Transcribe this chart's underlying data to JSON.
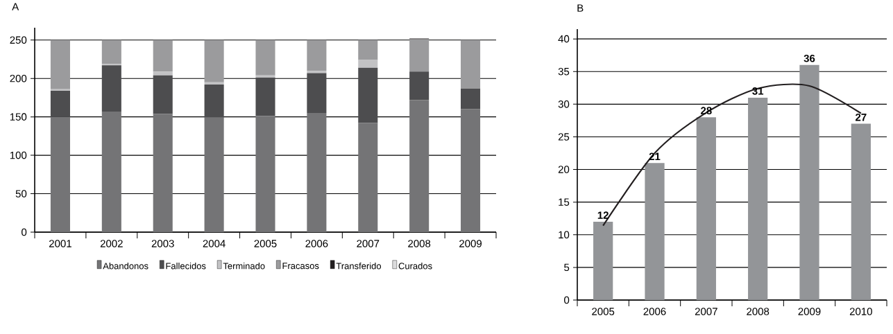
{
  "chart_data": [
    {
      "type": "bar",
      "title": "A",
      "stacked": true,
      "categories": [
        "2001",
        "2002",
        "2003",
        "2004",
        "2005",
        "2006",
        "2007",
        "2008",
        "2009"
      ],
      "series": [
        {
          "name": "Abandonos",
          "color": "#747476",
          "values": [
            150,
            157,
            154,
            149,
            151,
            155,
            142,
            172,
            160
          ]
        },
        {
          "name": "Fallecidos",
          "color": "#4d4d4f",
          "values": [
            34,
            60,
            50,
            43,
            50,
            52,
            72,
            37,
            27
          ]
        },
        {
          "name": "Terminado",
          "color": "#c2c2c4",
          "values": [
            2,
            2,
            5,
            3,
            3,
            3,
            10,
            0,
            0
          ]
        },
        {
          "name": "Fracasos",
          "color": "#9b9b9d",
          "values": [
            64,
            31,
            41,
            55,
            46,
            40,
            26,
            42,
            63
          ]
        },
        {
          "name": "Transferido",
          "color": "#231f20",
          "values": [
            0,
            0,
            0,
            0,
            0,
            0,
            0,
            1,
            0
          ]
        },
        {
          "name": "Curados",
          "color": "#dcdcdd",
          "values": [
            0,
            0,
            0,
            0,
            0,
            0,
            0,
            0,
            0
          ]
        }
      ],
      "ylim": [
        0,
        266
      ],
      "yticks": [
        0,
        50,
        100,
        150,
        200,
        250
      ],
      "grid": "y",
      "legend": "bottom"
    },
    {
      "type": "bar",
      "title": "B",
      "categories": [
        "2005",
        "2006",
        "2007",
        "2008",
        "2009",
        "2010"
      ],
      "series": [
        {
          "color": "#939598",
          "values": [
            12,
            21,
            28,
            31,
            36,
            27
          ],
          "data_labels": true
        },
        {
          "type": "line",
          "color": "#231f20",
          "marker": "none",
          "values": [
            11.4,
            22.5,
            28.7,
            32.4,
            32.8,
            28.6
          ]
        }
      ],
      "ylim": [
        0,
        41.5
      ],
      "yticks": [
        0,
        5,
        10,
        15,
        20,
        25,
        30,
        35,
        40
      ],
      "grid": "y"
    }
  ]
}
